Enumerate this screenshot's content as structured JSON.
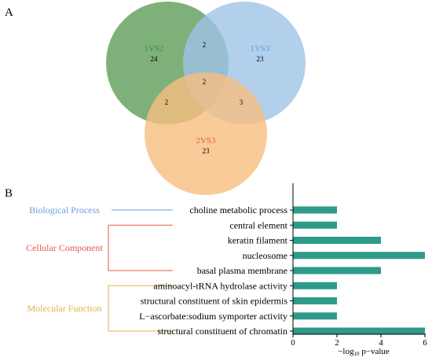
{
  "panels": {
    "a": "A",
    "b": "B"
  },
  "chart_data": [
    {
      "type": "venn",
      "sets": [
        {
          "name": "1VS2",
          "only": 24,
          "color": "#3f8a3a",
          "fill": "#5e9e57"
        },
        {
          "name": "1VS3",
          "only": 23,
          "color": "#6a9fd8",
          "fill": "#9fc3e7"
        },
        {
          "name": "2VS3",
          "only": 23,
          "color": "#e25a4e",
          "fill": "#f6be80"
        }
      ],
      "overlaps": {
        "ab": 2,
        "ac": 2,
        "bc": 3,
        "abc": 2
      }
    },
    {
      "type": "bar",
      "orientation": "horizontal",
      "categories": [
        "choline metabolic process",
        "central element",
        "keratin filament",
        "nucleosome",
        "basal plasma membrane",
        "aminoacyl-tRNA hydrolase activity",
        "structural constituent of skin epidermis",
        "L−ascorbate:sodium symporter activity",
        "structural constituent of chromatin"
      ],
      "values": [
        2,
        2,
        4,
        6,
        4,
        2,
        2,
        2,
        6
      ],
      "xlim": [
        0,
        6
      ],
      "xticks": [
        0,
        2,
        4,
        6
      ],
      "xlabel_prefix": "−log",
      "xlabel_sub": "10",
      "xlabel_suffix": " p−value",
      "bar_color": "#2e9a8a",
      "groups": [
        {
          "name": "Biological Process",
          "color": "#6a9fd8",
          "start": 0,
          "end": 0
        },
        {
          "name": "Cellular Component",
          "color": "#e25a4e",
          "start": 1,
          "end": 4
        },
        {
          "name": "Molecular Function",
          "color": "#e3b14a",
          "start": 5,
          "end": 8
        }
      ]
    }
  ]
}
